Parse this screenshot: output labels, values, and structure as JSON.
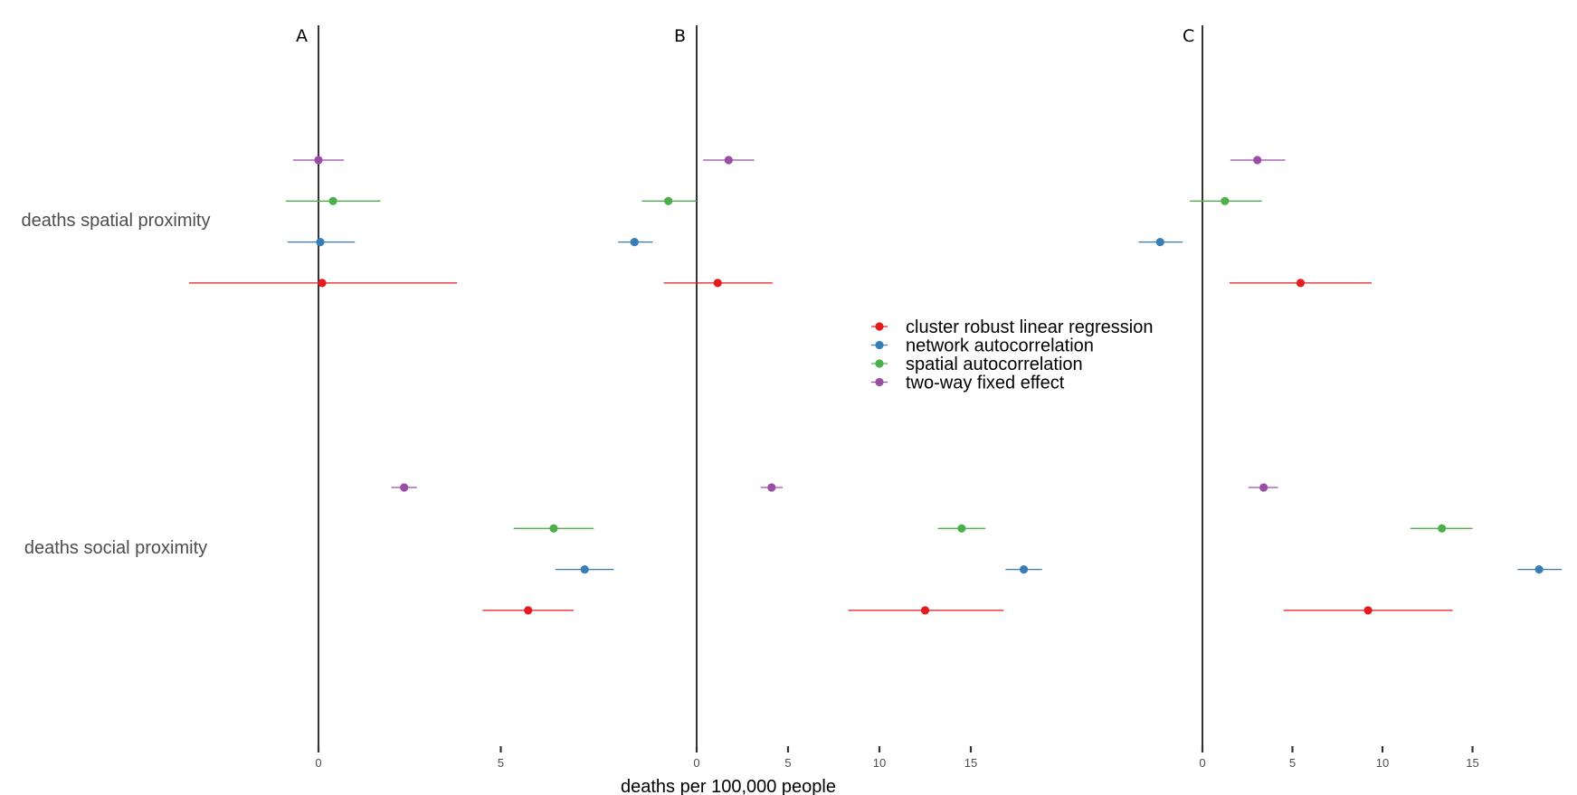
{
  "chart_data": {
    "type": "scatter",
    "subtype": "coefficient plot with confidence intervals",
    "xlabel": "deaths per 100,000 people",
    "categories": [
      "deaths spatial proximity",
      "deaths social proximity"
    ],
    "legend": {
      "placement": "center",
      "entries": [
        {
          "name": "cluster robust linear regression",
          "color": "#e41a1c"
        },
        {
          "name": "network autocorrelation",
          "color": "#377eb8"
        },
        {
          "name": "spatial autocorrelation",
          "color": "#4daf4a"
        },
        {
          "name": "two-way fixed effect",
          "color": "#984ea3"
        }
      ]
    },
    "grid": false,
    "panels": [
      {
        "label": "A",
        "ticks": [
          0,
          5
        ],
        "xlim": [
          -4.4,
          13.2
        ],
        "series": [
          {
            "name": "two-way fixed effect",
            "values": [
              {
                "category": "deaths spatial proximity",
                "est": 0.0,
                "lo": -0.7,
                "hi": 0.7
              },
              {
                "category": "deaths social proximity",
                "est": 2.35,
                "lo": 2.0,
                "hi": 2.7
              }
            ]
          },
          {
            "name": "spatial autocorrelation",
            "values": [
              {
                "category": "deaths spatial proximity",
                "est": 0.4,
                "lo": -0.9,
                "hi": 1.7
              },
              {
                "category": "deaths social proximity",
                "est": 6.45,
                "lo": 5.35,
                "hi": 7.55
              }
            ]
          },
          {
            "name": "network autocorrelation",
            "values": [
              {
                "category": "deaths spatial proximity",
                "est": 0.05,
                "lo": -0.85,
                "hi": 1.0
              },
              {
                "category": "deaths social proximity",
                "est": 7.3,
                "lo": 6.5,
                "hi": 8.1
              }
            ]
          },
          {
            "name": "cluster robust linear regression",
            "values": [
              {
                "category": "deaths spatial proximity",
                "est": 0.1,
                "lo": -3.55,
                "hi": 3.8
              },
              {
                "category": "deaths social proximity",
                "est": 5.75,
                "lo": 4.5,
                "hi": 7.0
              }
            ]
          }
        ]
      },
      {
        "label": "B",
        "ticks": [
          0,
          5,
          10,
          15
        ],
        "xlim": [
          -2.2,
          19.2
        ],
        "series": [
          {
            "name": "two-way fixed effect",
            "values": [
              {
                "category": "deaths spatial proximity",
                "est": 1.75,
                "lo": 0.35,
                "hi": 3.15
              },
              {
                "category": "deaths social proximity",
                "est": 4.1,
                "lo": 3.5,
                "hi": 4.7
              }
            ]
          },
          {
            "name": "spatial autocorrelation",
            "values": [
              {
                "category": "deaths spatial proximity",
                "est": -1.55,
                "lo": -3.0,
                "hi": 0.0
              },
              {
                "category": "deaths social proximity",
                "est": 14.5,
                "lo": 13.2,
                "hi": 15.8
              }
            ]
          },
          {
            "name": "network autocorrelation",
            "values": [
              {
                "category": "deaths spatial proximity",
                "est": -3.4,
                "lo": -4.3,
                "hi": -2.4
              },
              {
                "category": "deaths social proximity",
                "est": 17.9,
                "lo": 16.9,
                "hi": 18.9
              }
            ]
          },
          {
            "name": "cluster robust linear regression",
            "values": [
              {
                "category": "deaths spatial proximity",
                "est": 1.15,
                "lo": -1.8,
                "hi": 4.15
              },
              {
                "category": "deaths social proximity",
                "est": 12.5,
                "lo": 8.3,
                "hi": 16.8
              }
            ]
          }
        ]
      },
      {
        "label": "C",
        "ticks": [
          0,
          5,
          10,
          15
        ],
        "xlim": [
          -2.2,
          20.0
        ],
        "series": [
          {
            "name": "two-way fixed effect",
            "values": [
              {
                "category": "deaths spatial proximity",
                "est": 3.05,
                "lo": 1.55,
                "hi": 4.6
              }
            ]
          },
          {
            "name": "spatial autocorrelation",
            "values": [
              {
                "category": "deaths spatial proximity",
                "est": 1.25,
                "lo": -0.7,
                "hi": 3.3
              }
            ]
          },
          {
            "name": "network autocorrelation",
            "values": [
              {
                "category": "deaths spatial proximity",
                "est": -2.35,
                "lo": -3.55,
                "hi": -1.1
              }
            ]
          },
          {
            "name": "cluster robust linear regression",
            "values": [
              {
                "category": "deaths spatial proximity",
                "est": 5.45,
                "lo": 1.5,
                "hi": 9.4
              },
              {
                "category": "deaths social proximity",
                "est": 9.2,
                "lo": 4.5,
                "hi": 13.9
              }
            ]
          },
          {
            "name": "two-way fixed effect (social)",
            "values": [
              {
                "category": "deaths social proximity",
                "est": 3.4,
                "lo": 2.55,
                "hi": 4.2
              }
            ]
          },
          {
            "name": "spatial autocorrelation (social)",
            "values": [
              {
                "category": "deaths social proximity",
                "est": 13.3,
                "lo": 11.55,
                "hi": 15.0
              }
            ]
          },
          {
            "name": "network autocorrelation (social)",
            "values": [
              {
                "category": "deaths social proximity",
                "est": 18.7,
                "lo": 17.5,
                "hi": 19.95
              }
            ]
          }
        ]
      }
    ]
  }
}
